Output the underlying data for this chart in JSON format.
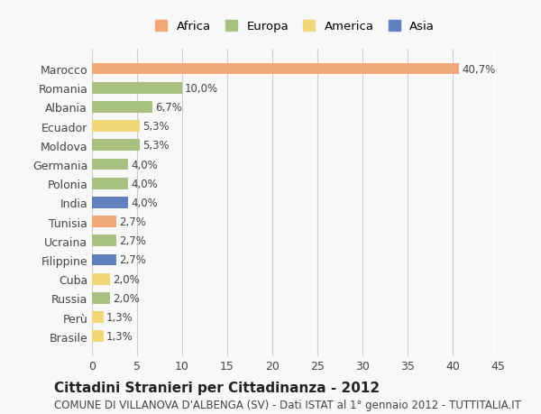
{
  "countries": [
    "Marocco",
    "Romania",
    "Albania",
    "Ecuador",
    "Moldova",
    "Germania",
    "Polonia",
    "India",
    "Tunisia",
    "Ucraina",
    "Filippine",
    "Cuba",
    "Russia",
    "Perù",
    "Brasile"
  ],
  "values": [
    40.7,
    10.0,
    6.7,
    5.3,
    5.3,
    4.0,
    4.0,
    4.0,
    2.7,
    2.7,
    2.7,
    2.0,
    2.0,
    1.3,
    1.3
  ],
  "labels": [
    "40,7%",
    "10,0%",
    "6,7%",
    "5,3%",
    "5,3%",
    "4,0%",
    "4,0%",
    "4,0%",
    "2,7%",
    "2,7%",
    "2,7%",
    "2,0%",
    "2,0%",
    "1,3%",
    "1,3%"
  ],
  "continents": [
    "Africa",
    "Europa",
    "Europa",
    "America",
    "Europa",
    "Europa",
    "Europa",
    "Asia",
    "Africa",
    "Europa",
    "Asia",
    "America",
    "Europa",
    "America",
    "America"
  ],
  "colors": {
    "Africa": "#f0a878",
    "Europa": "#a8c080",
    "America": "#f0d878",
    "Asia": "#6080c0"
  },
  "legend_labels": [
    "Africa",
    "Europa",
    "America",
    "Asia"
  ],
  "legend_colors": [
    "#f0a878",
    "#a8c080",
    "#f0d878",
    "#6080c0"
  ],
  "title": "Cittadini Stranieri per Cittadinanza - 2012",
  "subtitle": "COMUNE DI VILLANOVA D'ALBENGA (SV) - Dati ISTAT al 1° gennaio 2012 - TUTTITALIA.IT",
  "xlim": [
    0,
    45
  ],
  "xticks": [
    0,
    5,
    10,
    15,
    20,
    25,
    30,
    35,
    40,
    45
  ],
  "background_color": "#f8f8f8",
  "grid_color": "#cccccc",
  "bar_height": 0.6,
  "title_fontsize": 11,
  "subtitle_fontsize": 8.5,
  "tick_fontsize": 9,
  "label_fontsize": 8.5
}
